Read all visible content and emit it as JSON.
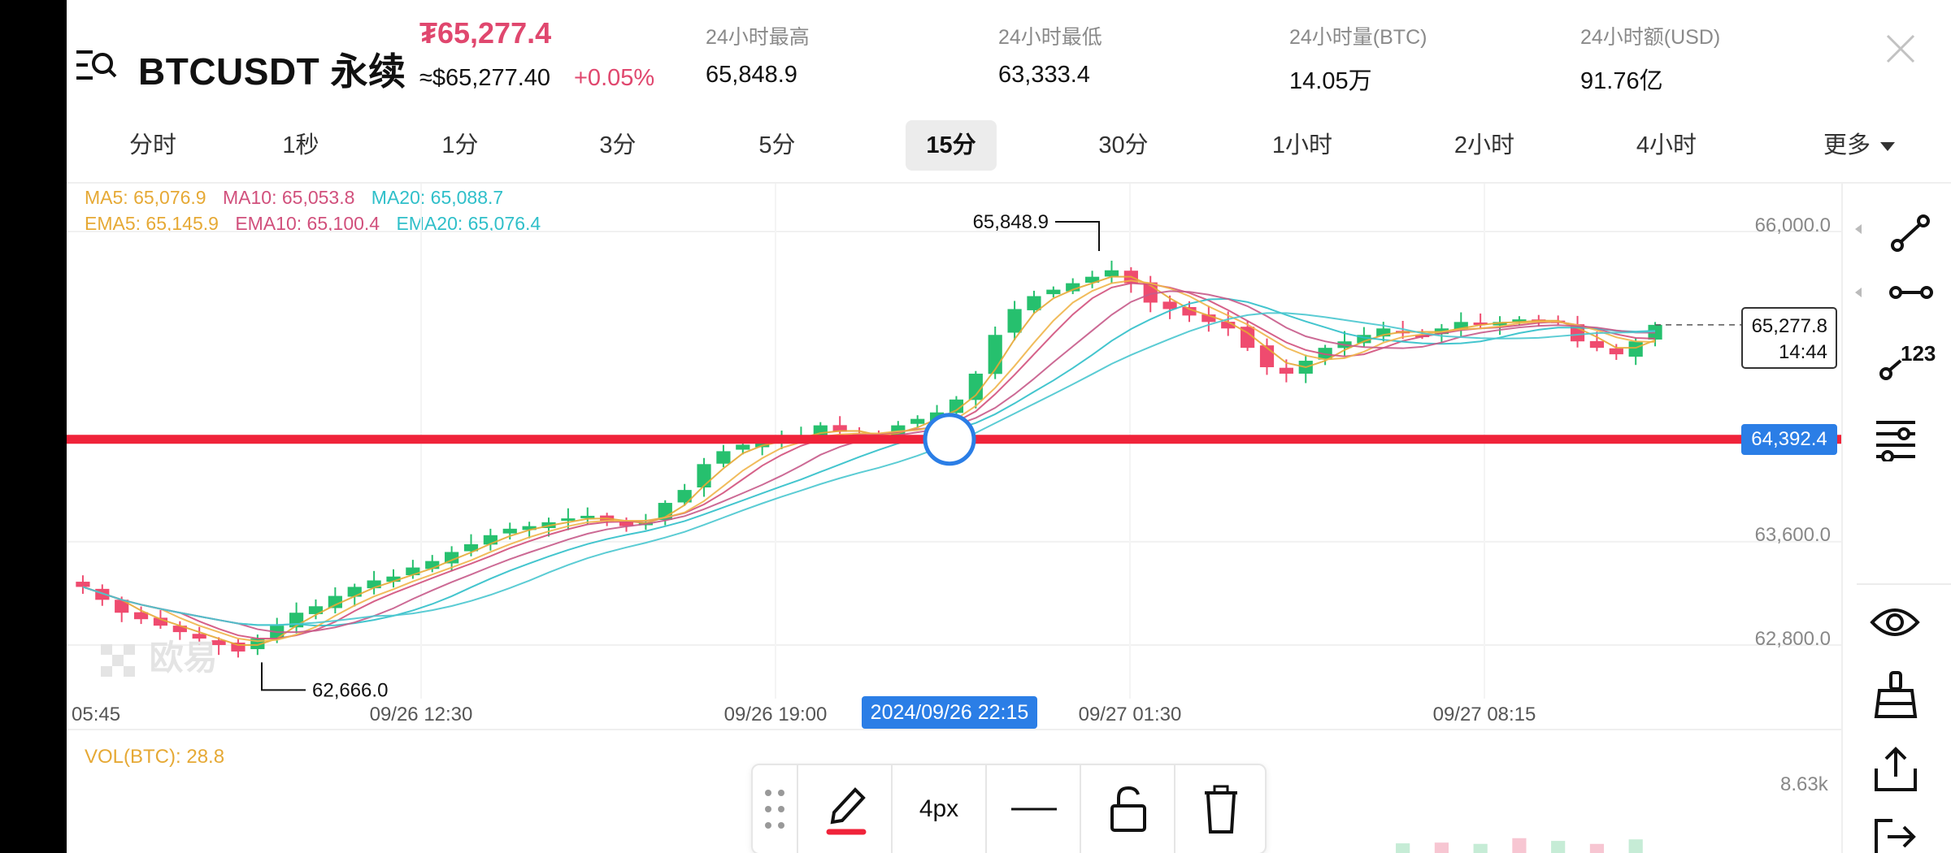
{
  "header": {
    "pair": "BTCUSDT 永续",
    "last_price": "₮65,277.4",
    "approx_usd": "≈$65,277.40",
    "change_pct": "+0.05%",
    "stats": [
      {
        "label": "24小时最高",
        "value": "65,848.9"
      },
      {
        "label": "24小时最低",
        "value": "63,333.4"
      },
      {
        "label": "24小时量(BTC)",
        "value": "14.05万"
      },
      {
        "label": "24小时额(USD)",
        "value": "91.76亿"
      }
    ]
  },
  "timeframes": {
    "tabs": [
      "分时",
      "1秒",
      "1分",
      "3分",
      "5分",
      "15分",
      "30分",
      "1小时",
      "2小时",
      "4小时"
    ],
    "active": "15分",
    "more_label": "更多"
  },
  "indicators": {
    "ma_row": [
      {
        "text": "MA5: 65,076.9",
        "color": "#e6a935"
      },
      {
        "text": "MA10: 65,053.8",
        "color": "#d1507c"
      },
      {
        "text": "MA20: 65,088.7",
        "color": "#2fbfc9"
      }
    ],
    "ema_row": [
      {
        "text": "EMA5: 65,145.9",
        "color": "#e6a935"
      },
      {
        "text": "EMA10: 65,100.4",
        "color": "#d1507c"
      },
      {
        "text": "EMA20: 65,076.4",
        "color": "#2fbfc9"
      }
    ]
  },
  "chart": {
    "price_ticks": [
      "66,000.0",
      "63,600.0",
      "62,800.0"
    ],
    "time_ticks": [
      "05:45",
      "09/26 12:30",
      "09/26 19:00",
      "09/27 01:30",
      "09/27 08:15"
    ],
    "high_annotation": "65,848.9",
    "low_annotation": "62,666.0",
    "current_price": "65,277.8",
    "countdown": "14:44",
    "drawn_line_price": "64,392.4",
    "crosshair_time": "2024/09/26 22:15",
    "watermark": "欧易",
    "vol_label": "VOL(BTC): 28.8",
    "vol_max": "8.63k",
    "colors": {
      "up": "#26c06e",
      "down": "#ef4b6f",
      "drawn_line": "#f0233a",
      "accent": "#2b7ee6"
    }
  },
  "chart_data": {
    "type": "candlestick",
    "interval": "15分",
    "price_levels": [
      62800,
      63600,
      66000
    ],
    "x_ticks": [
      "05:45",
      "09/26 12:30",
      "09/26 19:00",
      "09/27 01:30",
      "09/27 08:15"
    ],
    "high": 65848.9,
    "low": 62666.0,
    "current": 65277.8,
    "horizontal_line": 64392.4,
    "close_path": [
      63250,
      63150,
      63050,
      63000,
      62950,
      62900,
      62850,
      62800,
      62750,
      62850,
      62950,
      63050,
      63100,
      63180,
      63250,
      63300,
      63330,
      63400,
      63450,
      63520,
      63580,
      63650,
      63700,
      63720,
      63750,
      63780,
      63800,
      63760,
      63720,
      63750,
      63900,
      64000,
      64200,
      64300,
      64350,
      64380,
      64400,
      64420,
      64500,
      64450,
      64420,
      64400,
      64500,
      64550,
      64600,
      64700,
      64900,
      65200,
      65400,
      65500,
      65550,
      65600,
      65650,
      65700,
      65600,
      65450,
      65400,
      65350,
      65300,
      65250,
      65100,
      64950,
      64900,
      65000,
      65100,
      65150,
      65200,
      65250,
      65220,
      65200,
      65250,
      65300,
      65280,
      65300,
      65320,
      65310,
      65300,
      65150,
      65100,
      65050,
      65150,
      65277.8
    ]
  },
  "tools": {
    "right": [
      "line-tool-icon",
      "ray-tool-icon",
      "number-tool-icon",
      "settings-sliders-icon",
      "eye-icon",
      "brush-icon",
      "share-icon",
      "exit-icon"
    ],
    "number_tool_label": "123"
  },
  "draw_toolbar": {
    "stroke_width": "4px"
  }
}
